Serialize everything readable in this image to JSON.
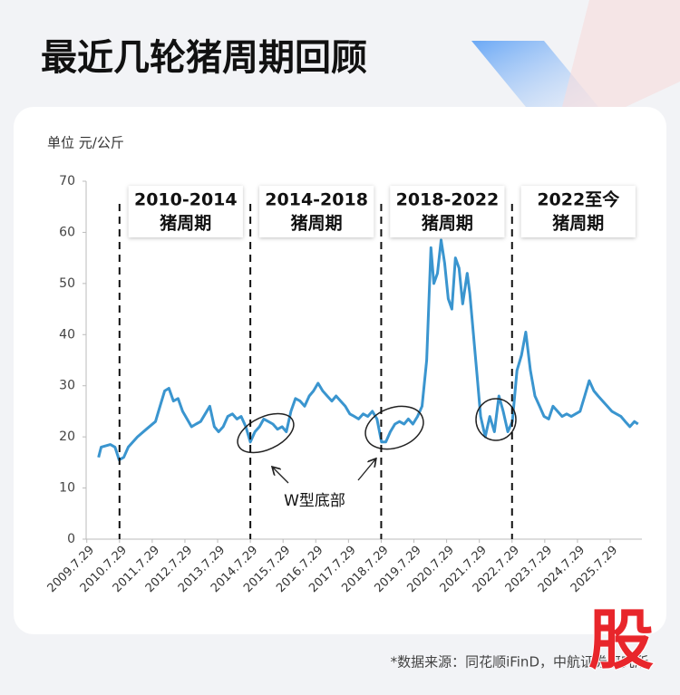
{
  "chart_data": {
    "type": "line",
    "title": "最近几轮猪周期回顾",
    "y_unit_label": "单位 元/公斤",
    "color": "#3a95cf",
    "x": [
      2009.93,
      2010.01,
      2010.29,
      2010.43,
      2010.56,
      2010.7,
      2010.84,
      2011.12,
      2011.39,
      2011.67,
      2011.81,
      2011.95,
      2012.08,
      2012.22,
      2012.36,
      2012.5,
      2012.77,
      2012.91,
      2013.05,
      2013.33,
      2013.47,
      2013.6,
      2013.74,
      2013.88,
      2014.02,
      2014.16,
      2014.29,
      2014.43,
      2014.57,
      2014.71,
      2014.85,
      2014.98,
      2015.12,
      2015.26,
      2015.4,
      2015.54,
      2015.67,
      2015.81,
      2015.95,
      2016.09,
      2016.23,
      2016.37,
      2016.5,
      2016.64,
      2016.78,
      2016.92,
      2017.06,
      2017.19,
      2017.33,
      2017.47,
      2017.61,
      2017.75,
      2017.88,
      2018.02,
      2018.16,
      2018.3,
      2018.44,
      2018.58,
      2018.71,
      2018.85,
      2018.99,
      2019.13,
      2019.27,
      2019.4,
      2019.54,
      2019.68,
      2019.82,
      2019.96,
      2020.09,
      2020.18,
      2020.29,
      2020.4,
      2020.51,
      2020.62,
      2020.73,
      2020.84,
      2020.95,
      2021.06,
      2021.2,
      2021.28,
      2021.39,
      2021.5,
      2021.61,
      2021.75,
      2021.89,
      2022.03,
      2022.17,
      2022.3,
      2022.44,
      2022.58,
      2022.72,
      2022.86,
      2022.99,
      2023.13,
      2023.27,
      2023.41,
      2023.55,
      2023.69,
      2023.82,
      2023.96,
      2024.1,
      2024.24,
      2024.38,
      2024.51,
      2024.65,
      2024.79,
      2024.93,
      2025.07,
      2025.2,
      2025.34,
      2025.48,
      2025.62,
      2025.76,
      2025.9,
      2026.03,
      2026.17,
      2026.31,
      2026.42
    ],
    "values": [
      16,
      18,
      18.5,
      18,
      15.5,
      16,
      18,
      20,
      21.5,
      23,
      26,
      29,
      29.5,
      27,
      27.5,
      25,
      22,
      22.5,
      23,
      26,
      22,
      21,
      22,
      24,
      24.5,
      23.5,
      24,
      22,
      19,
      21,
      22,
      23.5,
      23,
      22.5,
      21.5,
      22,
      21,
      25,
      27.5,
      27,
      26,
      28,
      29,
      30.5,
      29,
      28,
      27,
      28,
      27,
      26,
      24.5,
      24,
      23.5,
      24.5,
      24,
      25,
      23.5,
      19,
      19,
      21,
      22.5,
      23,
      22.5,
      23.5,
      22.5,
      24,
      26,
      35,
      57,
      50,
      52,
      58.5,
      54,
      47,
      45,
      55,
      53,
      46,
      52,
      48,
      40,
      32,
      24,
      20,
      24,
      21,
      28,
      25,
      21,
      23,
      33,
      36,
      40.5,
      33,
      28,
      26,
      24,
      23.5,
      26,
      25,
      24,
      24.5,
      24,
      24.5,
      25,
      28,
      31,
      29,
      28,
      27,
      26,
      25,
      24.5,
      24,
      23,
      22,
      23,
      22.5
    ],
    "xlim": [
      2009.55,
      2026.54
    ],
    "ylim": [
      0,
      70
    ],
    "yticks": [
      0,
      10,
      20,
      30,
      40,
      50,
      60,
      70
    ],
    "xticks": [
      {
        "value": 2009.57,
        "label": "2009.7.29"
      },
      {
        "value": 2010.57,
        "label": "2010.7.29"
      },
      {
        "value": 2011.57,
        "label": "2011.7.29"
      },
      {
        "value": 2012.57,
        "label": "2012.7.29"
      },
      {
        "value": 2013.57,
        "label": "2013.7.29"
      },
      {
        "value": 2014.57,
        "label": "2014.7.29"
      },
      {
        "value": 2015.57,
        "label": "2015.7.29"
      },
      {
        "value": 2016.57,
        "label": "2016.7.29"
      },
      {
        "value": 2017.57,
        "label": "2017.7.29"
      },
      {
        "value": 2018.57,
        "label": "2018.7.29"
      },
      {
        "value": 2019.57,
        "label": "2019.7.29"
      },
      {
        "value": 2020.57,
        "label": "2020.7.29"
      },
      {
        "value": 2021.57,
        "label": "2021.7.29"
      },
      {
        "value": 2022.57,
        "label": "2022.7.29"
      },
      {
        "value": 2023.57,
        "label": "2023.7.29"
      },
      {
        "value": 2024.57,
        "label": "2024.7.29"
      },
      {
        "value": 2025.57,
        "label": "2025.7.29"
      }
    ],
    "reference_lines": [
      2010.57,
      2014.57,
      2018.57,
      2022.57
    ],
    "annotations": [
      [
        "2010-2014",
        "猪周期"
      ],
      [
        "2014-2018",
        "猪周期"
      ],
      [
        "2018-2022",
        "猪周期"
      ],
      [
        "2022至今",
        "猪周期"
      ]
    ],
    "callout": "W型底部",
    "source": "*数据来源：同花顺iFinD，中航证券研究所"
  },
  "logo": "股"
}
